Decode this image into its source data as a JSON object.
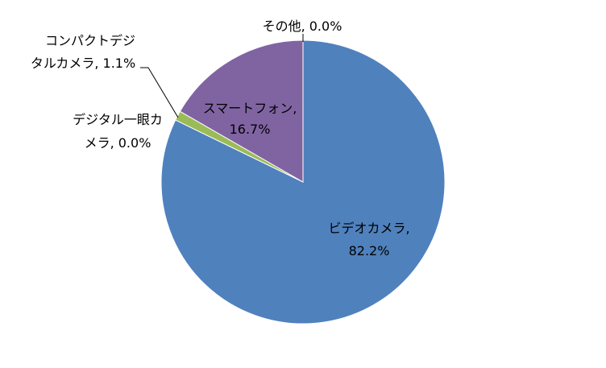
{
  "chart_data": {
    "type": "pie",
    "title": "",
    "slices": [
      {
        "label": "ビデオカメラ",
        "value": 82.2,
        "value_label": "82.2%",
        "color": "#4F81BD"
      },
      {
        "label": "コンパクトデジタルカメラ",
        "value": 1.1,
        "value_label": "1.1%",
        "color": "#9BBB59"
      },
      {
        "label": "デジタル一眼カメラ",
        "value": 0.0,
        "value_label": "0.0%",
        "color": "#C0504D"
      },
      {
        "label": "スマートフォン",
        "value": 16.7,
        "value_label": "16.7%",
        "color": "#8064A2"
      },
      {
        "label": "その他",
        "value": 0.0,
        "value_label": "0.0%",
        "color": "#4BACC6"
      }
    ],
    "data_labels": {
      "video": [
        "ビデオカメラ,",
        "82.2%"
      ],
      "compact": [
        "コンパクトデジ",
        "タルカメラ, 1.1%"
      ],
      "dslr": [
        "デジタル一眼カ",
        "メラ, 0.0%"
      ],
      "smartphone": [
        "スマートフォン,",
        "16.7%"
      ],
      "other": [
        "その他, 0.0%"
      ]
    },
    "start_angle_deg": 0,
    "direction": "clockwise",
    "legend": "none",
    "background": "#FFFFFF",
    "slice_border": "#FFFFFF",
    "leader_line_color": "#000000"
  }
}
